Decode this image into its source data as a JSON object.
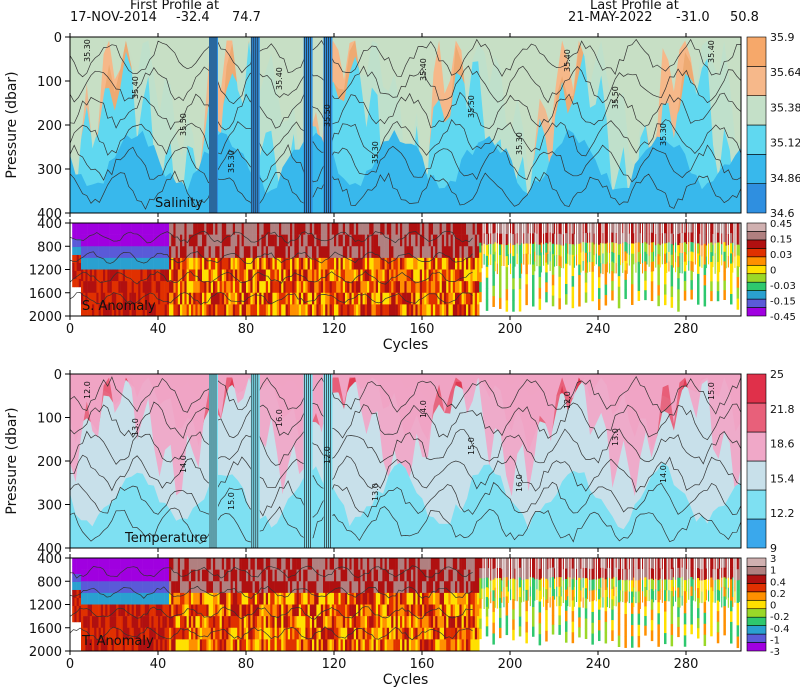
{
  "header": {
    "first_label": "First Profile at",
    "first_date": "17-NOV-2014",
    "first_lat": "-32.4",
    "first_lon": "74.7",
    "last_label": "Last Profile at",
    "last_date": "21-MAY-2022",
    "last_lat": "-31.0",
    "last_lon": "50.8"
  },
  "chart_data": [
    {
      "type": "heatmap",
      "title": "Salinity",
      "xlabel": "",
      "ylabel": "Pressure (dbar)",
      "xlim": [
        0,
        305
      ],
      "ylim": [
        400,
        0
      ],
      "x_ticks": [
        0,
        40,
        80,
        120,
        160,
        200,
        240,
        280
      ],
      "y_ticks": [
        0,
        100,
        200,
        300,
        400
      ],
      "colorbar_levels": [
        34.6,
        34.86,
        35.12,
        35.38,
        35.64,
        35.9
      ],
      "colors": [
        "#2f8fe0",
        "#38b8ec",
        "#60d8f0",
        "#c4e0c8",
        "#f6b88a",
        "#f6a86a"
      ],
      "contour_labels": [
        "35.30",
        "35.40",
        "35.50"
      ]
    },
    {
      "type": "heatmap",
      "title": "S. Anomaly",
      "xlabel": "Cycles",
      "ylabel": "",
      "xlim": [
        0,
        305
      ],
      "ylim": [
        2000,
        400
      ],
      "x_ticks": [
        0,
        40,
        80,
        120,
        160,
        200,
        240,
        280
      ],
      "y_ticks": [
        400,
        800,
        1200,
        1600,
        2000
      ],
      "colorbar_levels": [
        -0.45,
        -0.15,
        -0.03,
        0,
        0.03,
        0.15,
        0.45
      ],
      "colors": [
        "#a000e0",
        "#5a5ad8",
        "#2aa0d0",
        "#2ec86e",
        "#9ad828",
        "#ffe000",
        "#ff9000",
        "#e03000",
        "#b01010",
        "#b08080",
        "#d0b0b0"
      ]
    },
    {
      "type": "heatmap",
      "title": "Temperature",
      "xlabel": "",
      "ylabel": "Pressure (dbar)",
      "xlim": [
        0,
        305
      ],
      "ylim": [
        400,
        0
      ],
      "x_ticks": [
        0,
        40,
        80,
        120,
        160,
        200,
        240,
        280
      ],
      "y_ticks": [
        0,
        100,
        200,
        300,
        400
      ],
      "colorbar_levels": [
        9,
        12.2,
        15.4,
        18.6,
        21.8,
        25
      ],
      "colors": [
        "#3aa8ec",
        "#7ee0f2",
        "#c8e0ea",
        "#f0a8c8",
        "#e8607a",
        "#e0304a"
      ],
      "contour_labels": [
        "12.0",
        "13.0",
        "14.0",
        "15.0",
        "16.0"
      ]
    },
    {
      "type": "heatmap",
      "title": "T. Anomaly",
      "xlabel": "Cycles",
      "ylabel": "",
      "xlim": [
        0,
        305
      ],
      "ylim": [
        2000,
        400
      ],
      "x_ticks": [
        0,
        40,
        80,
        120,
        160,
        200,
        240,
        280
      ],
      "y_ticks": [
        400,
        800,
        1200,
        1600,
        2000
      ],
      "colorbar_levels": [
        -3,
        -1,
        -0.4,
        -0.2,
        0,
        0.2,
        0.4,
        1,
        3
      ],
      "colors": [
        "#a000e0",
        "#5a5ad8",
        "#2aa0d0",
        "#2ec86e",
        "#9ad828",
        "#ffe000",
        "#ff9000",
        "#e03000",
        "#b01010",
        "#b08080",
        "#d0b0b0"
      ]
    }
  ]
}
